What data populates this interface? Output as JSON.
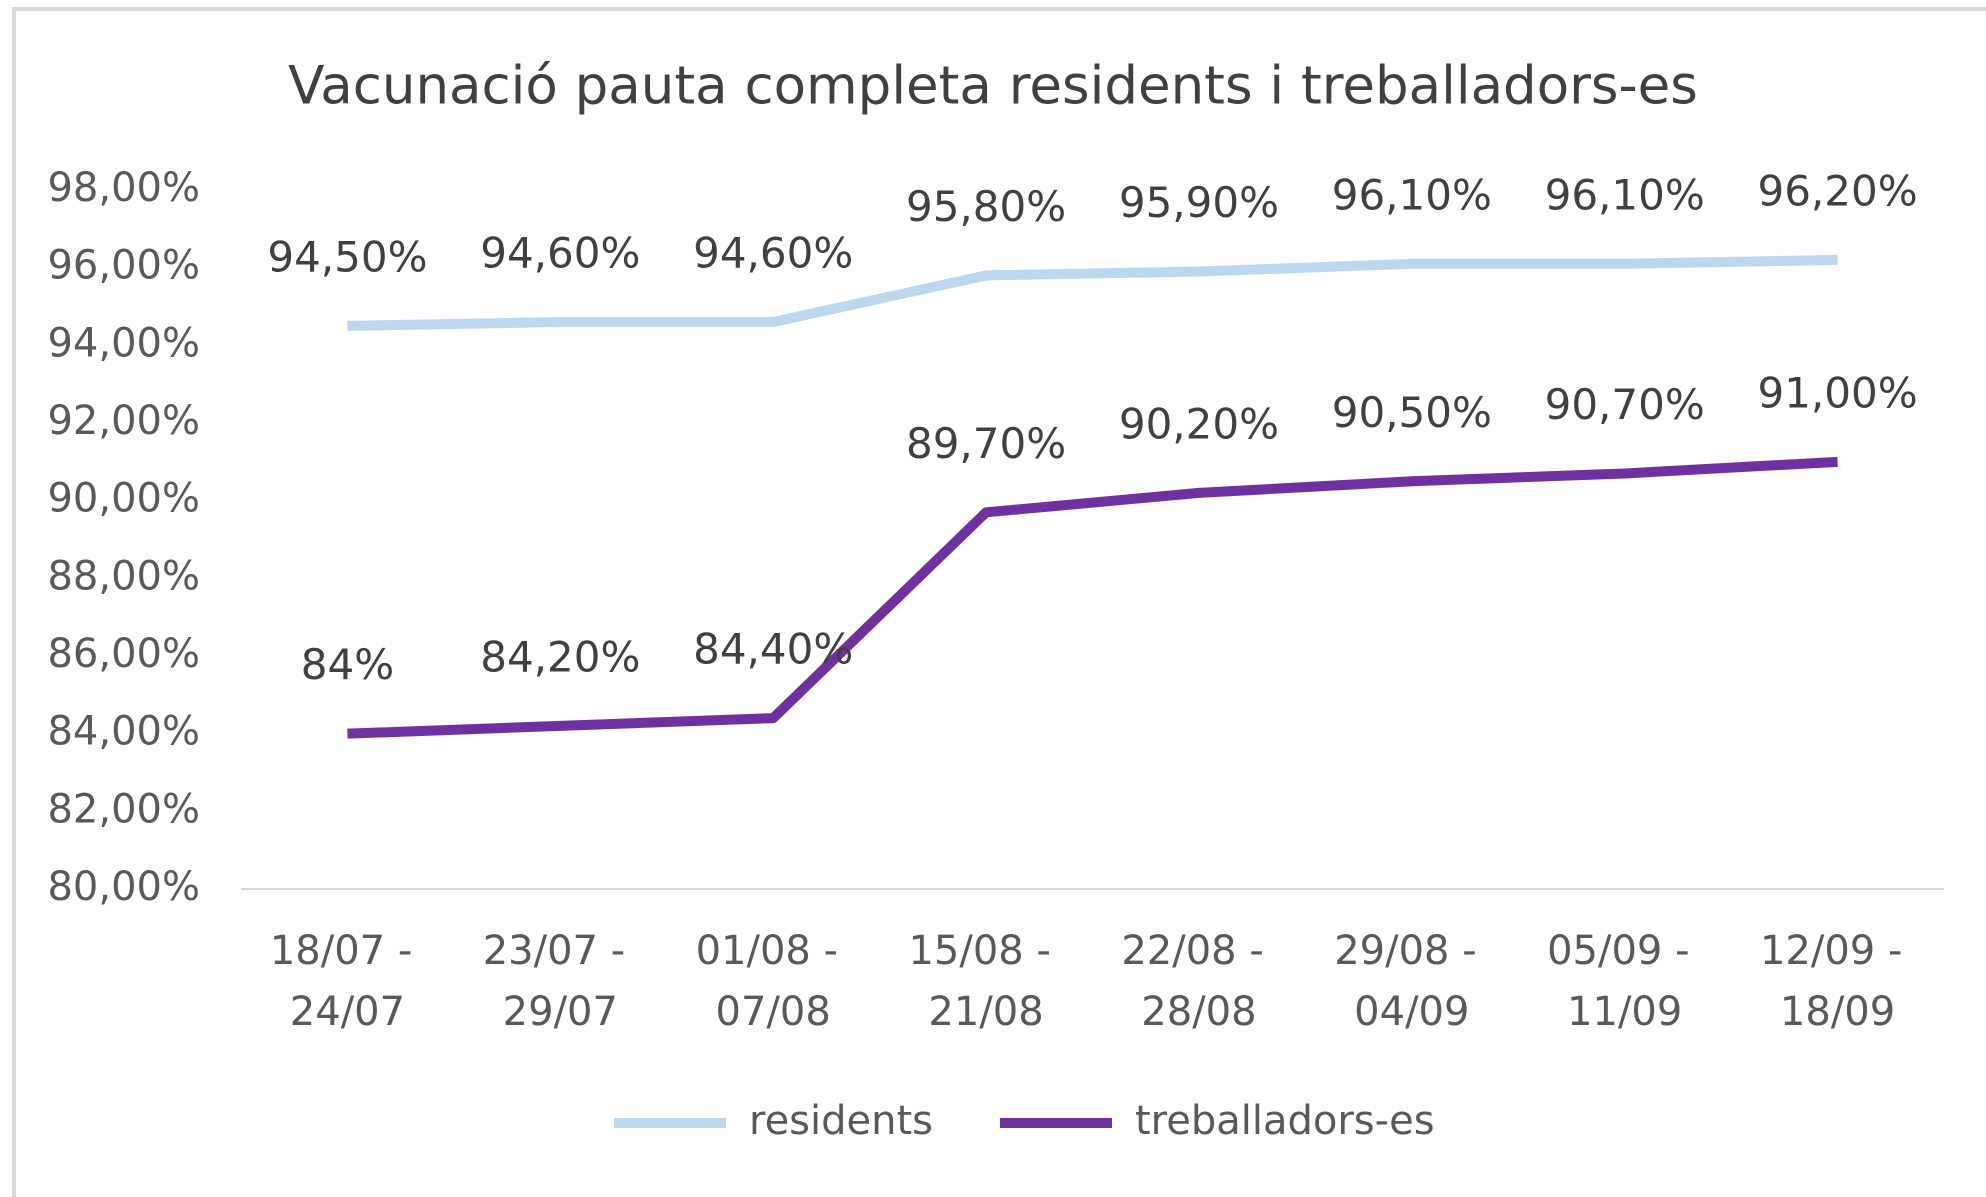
{
  "chart_data": {
    "type": "line",
    "title": "Vacunació pauta completa residents i treballadors-es",
    "categories": [
      "18/07 - 24/07",
      "23/07 - 29/07",
      "01/08 - 07/08",
      "15/08 - 21/08",
      "22/08 - 28/08",
      "29/08 - 04/09",
      "05/09 - 11/09",
      "12/09 - 18/09"
    ],
    "series": [
      {
        "name": "residents",
        "color": "#bdd7ee",
        "values": [
          94.5,
          94.6,
          94.6,
          95.8,
          95.9,
          96.1,
          96.1,
          96.2
        ],
        "value_labels": [
          "94,50%",
          "94,60%",
          "94,60%",
          "95,80%",
          "95,90%",
          "96,10%",
          "96,10%",
          "96,20%"
        ]
      },
      {
        "name": "treballadors-es",
        "color": "#7030a0",
        "values": [
          84,
          84.2,
          84.4,
          89.7,
          90.2,
          90.5,
          90.7,
          91.0
        ],
        "value_labels": [
          "84%",
          "84,20%",
          "84,40%",
          "89,70%",
          "90,20%",
          "90,50%",
          "90,70%",
          "91,00%"
        ]
      }
    ],
    "ylim": [
      80,
      98
    ],
    "yticks": [
      {
        "value": 80,
        "label": "80,00%"
      },
      {
        "value": 82,
        "label": "82,00%"
      },
      {
        "value": 84,
        "label": "84,00%"
      },
      {
        "value": 86,
        "label": "86,00%"
      },
      {
        "value": 88,
        "label": "88,00%"
      },
      {
        "value": 90,
        "label": "90,00%"
      },
      {
        "value": 92,
        "label": "92,00%"
      },
      {
        "value": 94,
        "label": "94,00%"
      },
      {
        "value": 96,
        "label": "96,00%"
      },
      {
        "value": 98,
        "label": "98,00%"
      }
    ],
    "grid": false,
    "legend": "bottom"
  }
}
